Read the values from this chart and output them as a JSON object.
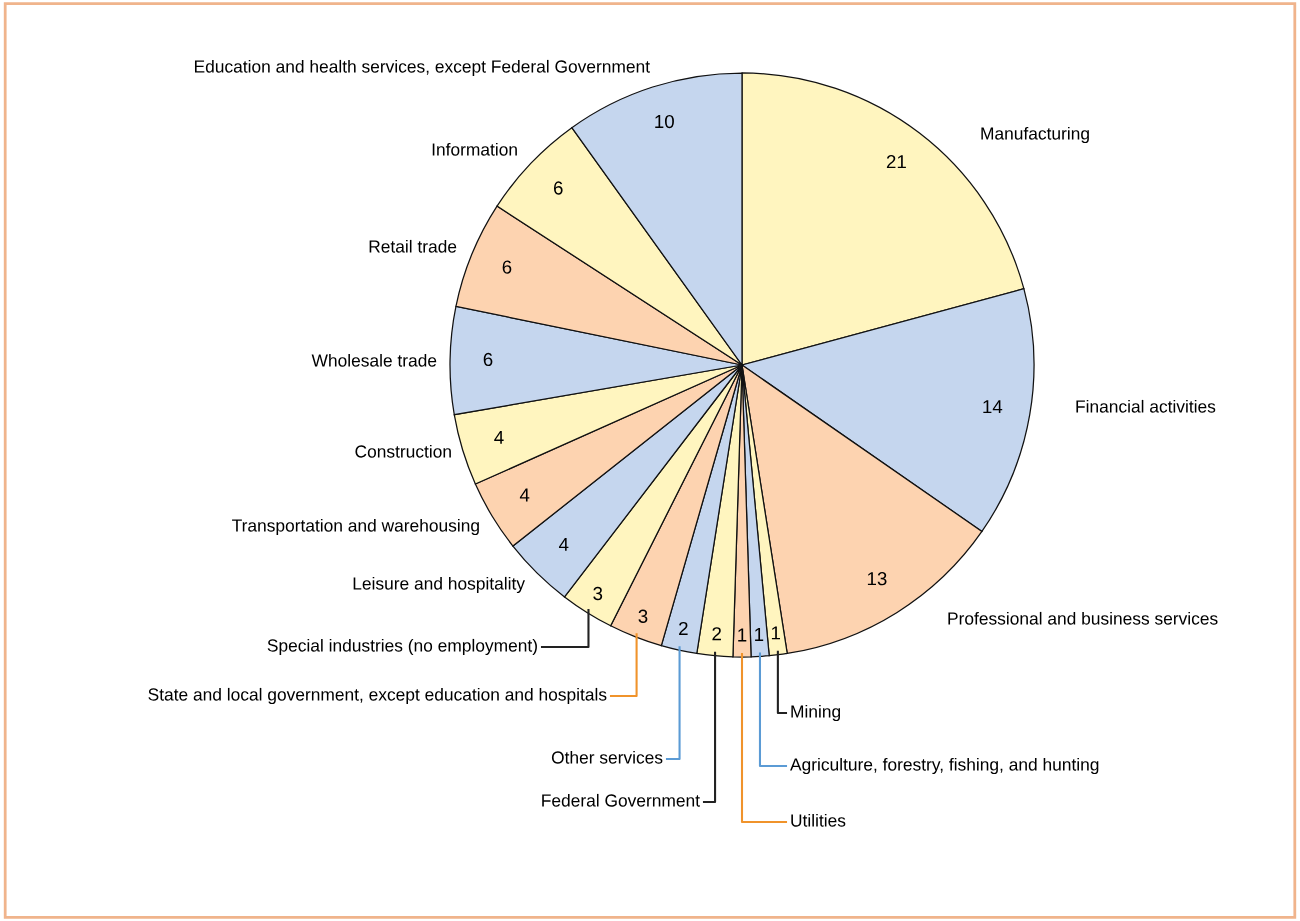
{
  "chart_data": {
    "type": "pie",
    "categories": [
      "Manufacturing",
      "Financial activities",
      "Professional and business services",
      "Mining",
      "Agriculture, forestry, fishing, and hunting",
      "Utilities",
      "Federal Government",
      "Other services",
      "State and local government, except education and hospitals",
      "Special industries (no employment)",
      "Leisure and hospitality",
      "Transportation and warehousing",
      "Construction",
      "Wholesale trade",
      "Retail trade",
      "Information",
      "Education and health services, except Federal Government"
    ],
    "values": [
      21,
      14,
      13,
      1,
      1,
      1,
      2,
      2,
      3,
      3,
      4,
      4,
      4,
      6,
      6,
      6,
      10
    ],
    "colors": [
      "#fff5bf",
      "#c5d6ee",
      "#fdd3b0",
      "#fff5bf",
      "#c5d6ee",
      "#fdd3b0",
      "#fff5bf",
      "#c5d6ee",
      "#fdd3b0",
      "#fff5bf",
      "#c5d6ee",
      "#fdd3b0",
      "#fff5bf",
      "#c5d6ee",
      "#fdd3b0",
      "#fff5bf",
      "#c5d6ee"
    ],
    "data_labels": true
  }
}
